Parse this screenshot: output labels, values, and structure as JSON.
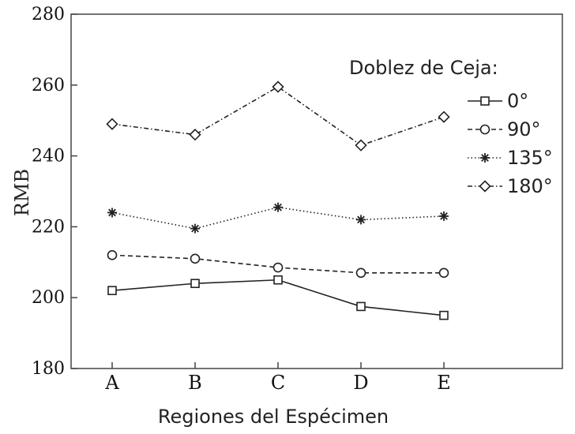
{
  "chart_data": {
    "type": "line",
    "xlabel": "Regiones del Espécimen",
    "ylabel": "RMB",
    "categories": [
      "A",
      "B",
      "C",
      "D",
      "E"
    ],
    "ylim": [
      180,
      280
    ],
    "yticks": [
      180,
      200,
      220,
      240,
      260,
      280
    ],
    "grid": false,
    "legend": {
      "title": "Doblez de Ceja:",
      "placement": "top-right"
    },
    "series": [
      {
        "name": "0°",
        "values": [
          202,
          204,
          205,
          197.5,
          195
        ],
        "line_style": "solid",
        "marker": "square"
      },
      {
        "name": "90°",
        "values": [
          212,
          211,
          208.5,
          207,
          207
        ],
        "line_style": "dashed",
        "marker": "circle"
      },
      {
        "name": "135°",
        "values": [
          224,
          219.5,
          225.5,
          222,
          223
        ],
        "line_style": "dotted",
        "marker": "asterisk"
      },
      {
        "name": "180°",
        "values": [
          249,
          246,
          259.5,
          243,
          251
        ],
        "line_style": "dashdot",
        "marker": "diamond"
      }
    ],
    "colors": {
      "lines": "#222222",
      "axis": "#444444"
    }
  }
}
